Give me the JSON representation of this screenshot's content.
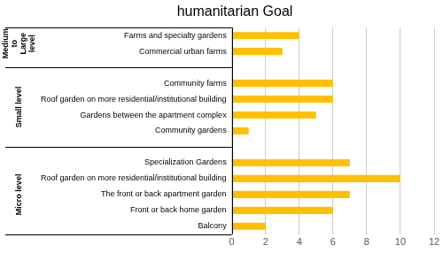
{
  "chart_data": {
    "type": "bar",
    "orientation": "horizontal",
    "title": "humanitarian Goal",
    "groups": [
      {
        "name": "Medium to Large level",
        "categories": [
          "Farms and specialty gardens",
          "Commercial urban farms"
        ],
        "values": [
          4,
          3
        ]
      },
      {
        "name": "Small level",
        "categories": [
          "Community farms",
          "Roof garden on more residential/institutional building",
          "Gardens between the apartment complex",
          "Community gardens"
        ],
        "values": [
          6,
          6,
          5,
          1
        ]
      },
      {
        "name": "Micro level",
        "categories": [
          "Specialization Gardens",
          "Roof garden on more residential/institutional building",
          "The front or back apartment garden",
          "Front or back home garden",
          "Balcony"
        ],
        "values": [
          7,
          10,
          7,
          6,
          2
        ]
      }
    ],
    "color": "#FFC000",
    "xlim": [
      0,
      12
    ],
    "xticks": [
      0,
      2,
      4,
      6,
      8,
      10,
      12
    ],
    "grid": true
  }
}
